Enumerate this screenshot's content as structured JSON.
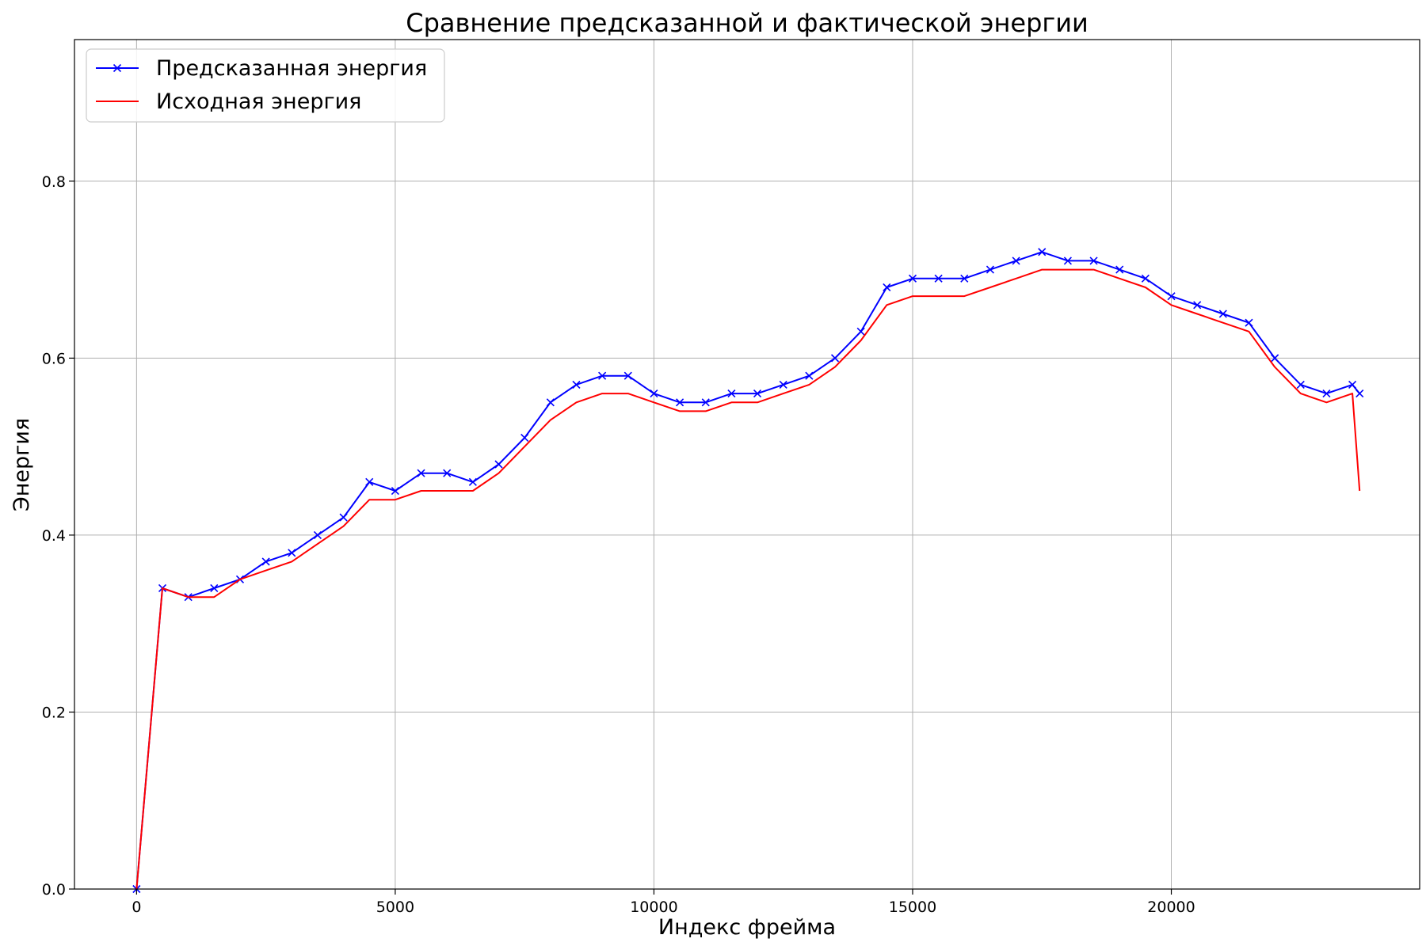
{
  "chart_data": {
    "type": "line",
    "title": "Сравнение предсказанной и фактической энергии",
    "xlabel": "Индекс фрейма",
    "ylabel": "Энергия",
    "xlim": [
      -1200,
      24800
    ],
    "ylim": [
      0.0,
      0.96
    ],
    "xticks": [
      0,
      5000,
      10000,
      15000,
      20000
    ],
    "yticks": [
      0.0,
      0.2,
      0.4,
      0.6,
      0.8
    ],
    "ytick_labels": [
      "0.0",
      "0.2",
      "0.4",
      "0.6",
      "0.8"
    ],
    "grid": true,
    "legend_position": "top-left",
    "series": [
      {
        "name": "Предсказанная энергия",
        "color": "#0000ff",
        "marker": "x",
        "x": [
          0,
          500,
          1000,
          1500,
          2000,
          2500,
          3000,
          3500,
          4000,
          4500,
          5000,
          5500,
          6000,
          6500,
          7000,
          7500,
          8000,
          8500,
          9000,
          9500,
          10000,
          10500,
          11000,
          11500,
          12000,
          12500,
          13000,
          13500,
          14000,
          14500,
          15000,
          15500,
          16000,
          16500,
          17000,
          17500,
          18000,
          18500,
          19000,
          19500,
          20000,
          20500,
          21000,
          21500,
          22000,
          22500,
          23000,
          23500,
          23640
        ],
        "values": [
          0.0,
          0.34,
          0.33,
          0.34,
          0.35,
          0.37,
          0.38,
          0.4,
          0.42,
          0.46,
          0.45,
          0.47,
          0.47,
          0.46,
          0.48,
          0.51,
          0.55,
          0.57,
          0.58,
          0.58,
          0.56,
          0.55,
          0.55,
          0.56,
          0.56,
          0.57,
          0.58,
          0.6,
          0.63,
          0.68,
          0.69,
          0.69,
          0.69,
          0.7,
          0.71,
          0.72,
          0.71,
          0.71,
          0.7,
          0.69,
          0.67,
          0.66,
          0.65,
          0.64,
          0.6,
          0.57,
          0.56,
          0.57,
          0.56
        ]
      },
      {
        "name": "Исходная энергия",
        "color": "#ff0000",
        "marker": "none",
        "x": [
          0,
          500,
          1000,
          1500,
          2000,
          2500,
          3000,
          3500,
          4000,
          4500,
          5000,
          5500,
          6000,
          6500,
          7000,
          7500,
          8000,
          8500,
          9000,
          9500,
          10000,
          10500,
          11000,
          11500,
          12000,
          12500,
          13000,
          13500,
          14000,
          14500,
          15000,
          15500,
          16000,
          16500,
          17000,
          17500,
          18000,
          18500,
          19000,
          19500,
          20000,
          20500,
          21000,
          21500,
          22000,
          22500,
          23000,
          23500,
          23640
        ],
        "values": [
          0.0,
          0.34,
          0.33,
          0.33,
          0.35,
          0.36,
          0.37,
          0.39,
          0.41,
          0.44,
          0.44,
          0.45,
          0.45,
          0.45,
          0.47,
          0.5,
          0.53,
          0.55,
          0.56,
          0.56,
          0.55,
          0.54,
          0.54,
          0.55,
          0.55,
          0.56,
          0.57,
          0.59,
          0.62,
          0.66,
          0.67,
          0.67,
          0.67,
          0.68,
          0.69,
          0.7,
          0.7,
          0.7,
          0.69,
          0.68,
          0.66,
          0.65,
          0.64,
          0.63,
          0.59,
          0.56,
          0.55,
          0.56,
          0.45
        ]
      }
    ]
  }
}
